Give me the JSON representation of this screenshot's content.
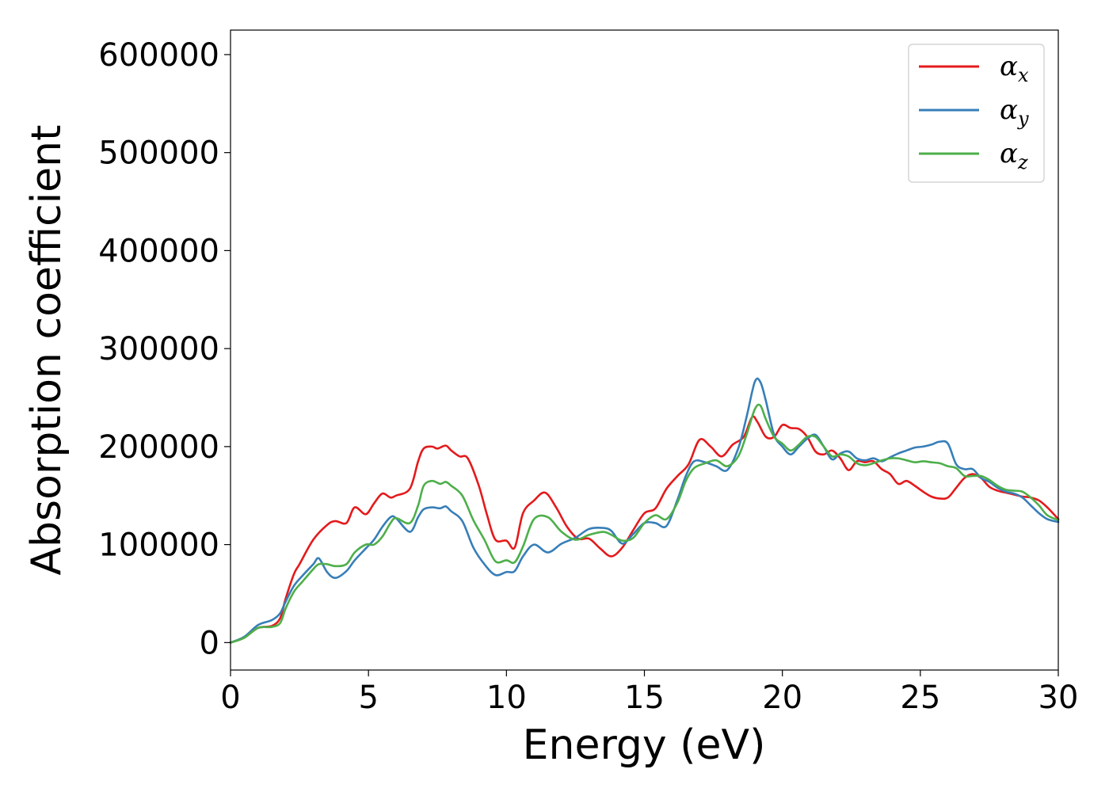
{
  "chart_data": {
    "type": "line",
    "title": "",
    "xlabel": "Energy (eV)",
    "ylabel": "Absorption coefficient",
    "xlim": [
      0,
      30
    ],
    "ylim": [
      -28000,
      625000
    ],
    "xticks": [
      0,
      5,
      10,
      15,
      20,
      25,
      30
    ],
    "yticks": [
      0,
      100000,
      200000,
      300000,
      400000,
      500000,
      600000
    ],
    "grid": false,
    "legend_position": "top-right",
    "legend": [
      {
        "symbol": "α",
        "subscript": "x",
        "color": "#e41a1c"
      },
      {
        "symbol": "α",
        "subscript": "y",
        "color": "#377eb8"
      },
      {
        "symbol": "α",
        "subscript": "z",
        "color": "#4daf4a"
      }
    ],
    "series": [
      {
        "name": "αx",
        "color": "#e41a1c",
        "x": [
          0,
          0.5,
          1,
          1.5,
          1.8,
          2,
          2.3,
          2.5,
          3,
          3.5,
          3.8,
          4.2,
          4.5,
          4.9,
          5.2,
          5.5,
          5.8,
          6,
          6.5,
          6.8,
          7,
          7.3,
          7.5,
          7.8,
          8,
          8.3,
          8.6,
          9,
          9.3,
          9.6,
          10,
          10.3,
          10.6,
          11,
          11.4,
          11.8,
          12.2,
          12.6,
          13,
          13.4,
          13.8,
          14.2,
          14.6,
          15,
          15.4,
          15.8,
          16.2,
          16.6,
          17,
          17.4,
          17.8,
          18.2,
          18.6,
          18.9,
          19.1,
          19.4,
          19.7,
          20,
          20.3,
          20.6,
          20.9,
          21.2,
          21.5,
          21.8,
          22.1,
          22.4,
          22.7,
          23,
          23.3,
          23.6,
          23.9,
          24.2,
          24.5,
          24.8,
          25.1,
          25.4,
          25.7,
          26,
          26.3,
          26.6,
          26.9,
          27.2,
          27.5,
          27.8,
          28.1,
          28.4,
          28.7,
          29,
          29.3,
          29.6,
          30
        ],
        "values": [
          0,
          5000,
          15000,
          17000,
          25000,
          45000,
          70000,
          80000,
          105000,
          120000,
          124000,
          122000,
          138000,
          131000,
          142000,
          152000,
          148000,
          150000,
          157000,
          185000,
          198000,
          200000,
          198000,
          201000,
          196000,
          190000,
          188000,
          160000,
          130000,
          105000,
          104000,
          97000,
          132000,
          145000,
          153000,
          138000,
          118000,
          106000,
          106000,
          96000,
          88000,
          97000,
          115000,
          132000,
          137000,
          157000,
          170000,
          182000,
          207000,
          200000,
          190000,
          202000,
          210000,
          230000,
          225000,
          210000,
          210000,
          222000,
          219000,
          218000,
          210000,
          195000,
          192000,
          196000,
          188000,
          176000,
          185000,
          184000,
          185000,
          177000,
          172000,
          162000,
          165000,
          160000,
          154000,
          149000,
          147000,
          148000,
          158000,
          168000,
          172000,
          168000,
          159000,
          155000,
          153000,
          151000,
          149000,
          148000,
          145000,
          138000,
          126000
        ]
      },
      {
        "name": "αy",
        "color": "#377eb8",
        "x": [
          0,
          0.5,
          1,
          1.5,
          1.8,
          2,
          2.3,
          2.6,
          3,
          3.2,
          3.5,
          3.8,
          4.2,
          4.5,
          4.9,
          5.2,
          5.5,
          5.8,
          6,
          6.5,
          6.8,
          7,
          7.3,
          7.6,
          7.8,
          8,
          8.4,
          8.8,
          9.2,
          9.6,
          10,
          10.3,
          10.6,
          11,
          11.5,
          12,
          12.5,
          13,
          13.5,
          13.8,
          14.2,
          14.6,
          15,
          15.4,
          15.8,
          16.2,
          16.5,
          16.8,
          17.2,
          17.6,
          18,
          18.4,
          18.7,
          19,
          19.2,
          19.4,
          19.7,
          20,
          20.3,
          20.6,
          20.9,
          21.2,
          21.5,
          21.8,
          22.1,
          22.4,
          22.7,
          23,
          23.3,
          23.6,
          23.9,
          24.2,
          24.5,
          24.8,
          25.1,
          25.4,
          25.7,
          26,
          26.3,
          26.6,
          26.9,
          27.2,
          27.5,
          27.8,
          28.1,
          28.4,
          28.7,
          29,
          29.3,
          29.6,
          30
        ],
        "values": [
          0,
          6000,
          18000,
          23000,
          30000,
          42000,
          58000,
          68000,
          80000,
          86000,
          72000,
          66000,
          73000,
          84000,
          96000,
          105000,
          118000,
          128000,
          127000,
          113000,
          128000,
          136000,
          138000,
          137000,
          139000,
          134000,
          124000,
          97000,
          80000,
          69000,
          72000,
          73000,
          88000,
          100000,
          92000,
          101000,
          107000,
          116000,
          117000,
          114000,
          101000,
          111000,
          122000,
          122000,
          119000,
          146000,
          170000,
          185000,
          184000,
          180000,
          176000,
          198000,
          230000,
          266000,
          266000,
          247000,
          212000,
          200000,
          192000,
          200000,
          208000,
          212000,
          200000,
          187000,
          193000,
          195000,
          188000,
          186000,
          188000,
          185000,
          189000,
          193000,
          196000,
          199000,
          200000,
          202000,
          205000,
          203000,
          182000,
          177000,
          177000,
          168000,
          164000,
          158000,
          154000,
          152000,
          148000,
          140000,
          132000,
          126000,
          123000
        ]
      },
      {
        "name": "αz",
        "color": "#4daf4a",
        "x": [
          0,
          0.5,
          1,
          1.5,
          1.8,
          2,
          2.3,
          2.6,
          3,
          3.2,
          3.5,
          3.8,
          4.2,
          4.5,
          4.9,
          5.2,
          5.5,
          5.8,
          6,
          6.5,
          6.8,
          7,
          7.3,
          7.6,
          7.8,
          8,
          8.4,
          8.8,
          9.2,
          9.6,
          10,
          10.3,
          10.6,
          11,
          11.5,
          12,
          12.5,
          13,
          13.5,
          13.8,
          14.2,
          14.6,
          15,
          15.4,
          15.8,
          16.2,
          16.5,
          16.8,
          17.2,
          17.6,
          18,
          18.4,
          18.7,
          19,
          19.2,
          19.4,
          19.7,
          20,
          20.3,
          20.6,
          20.9,
          21.2,
          21.5,
          21.8,
          22.1,
          22.4,
          22.7,
          23,
          23.3,
          23.6,
          23.9,
          24.2,
          24.5,
          24.8,
          25.1,
          25.4,
          25.7,
          26,
          26.3,
          26.6,
          26.9,
          27.2,
          27.5,
          27.8,
          28.1,
          28.4,
          28.7,
          29,
          29.3,
          29.6,
          30
        ],
        "values": [
          0,
          5000,
          15000,
          16000,
          20000,
          35000,
          52000,
          62000,
          75000,
          80000,
          80000,
          78000,
          80000,
          92000,
          100000,
          100000,
          108000,
          122000,
          127000,
          122000,
          140000,
          160000,
          165000,
          162000,
          164000,
          160000,
          150000,
          125000,
          105000,
          83000,
          84000,
          82000,
          98000,
          126000,
          128000,
          113000,
          105000,
          110000,
          113000,
          110000,
          104000,
          107000,
          122000,
          130000,
          126000,
          143000,
          165000,
          178000,
          183000,
          186000,
          180000,
          190000,
          212000,
          238000,
          242000,
          228000,
          210000,
          203000,
          196000,
          202000,
          210000,
          210000,
          200000,
          190000,
          192000,
          190000,
          183000,
          181000,
          183000,
          186000,
          188000,
          188000,
          186000,
          184000,
          185000,
          184000,
          183000,
          180000,
          178000,
          170000,
          170000,
          170000,
          166000,
          160000,
          156000,
          155000,
          154000,
          148000,
          140000,
          130000,
          125000
        ]
      }
    ]
  }
}
